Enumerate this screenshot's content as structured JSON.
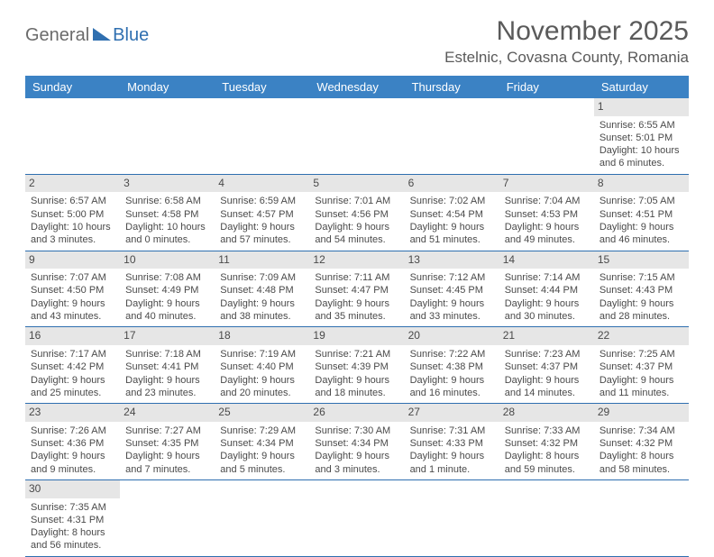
{
  "logo": {
    "general": "General",
    "blue": "Blue"
  },
  "header": {
    "month": "November 2025",
    "location": "Estelnic, Covasna County, Romania"
  },
  "colors": {
    "header_bg": "#3b82c4",
    "rule": "#2f6fb0",
    "daynum_bg": "#e6e6e6"
  },
  "day_headers": [
    "Sunday",
    "Monday",
    "Tuesday",
    "Wednesday",
    "Thursday",
    "Friday",
    "Saturday"
  ],
  "weeks": [
    [
      null,
      null,
      null,
      null,
      null,
      null,
      {
        "n": "1",
        "sr": "Sunrise: 6:55 AM",
        "ss": "Sunset: 5:01 PM",
        "dl": "Daylight: 10 hours and 6 minutes."
      }
    ],
    [
      {
        "n": "2",
        "sr": "Sunrise: 6:57 AM",
        "ss": "Sunset: 5:00 PM",
        "dl": "Daylight: 10 hours and 3 minutes."
      },
      {
        "n": "3",
        "sr": "Sunrise: 6:58 AM",
        "ss": "Sunset: 4:58 PM",
        "dl": "Daylight: 10 hours and 0 minutes."
      },
      {
        "n": "4",
        "sr": "Sunrise: 6:59 AM",
        "ss": "Sunset: 4:57 PM",
        "dl": "Daylight: 9 hours and 57 minutes."
      },
      {
        "n": "5",
        "sr": "Sunrise: 7:01 AM",
        "ss": "Sunset: 4:56 PM",
        "dl": "Daylight: 9 hours and 54 minutes."
      },
      {
        "n": "6",
        "sr": "Sunrise: 7:02 AM",
        "ss": "Sunset: 4:54 PM",
        "dl": "Daylight: 9 hours and 51 minutes."
      },
      {
        "n": "7",
        "sr": "Sunrise: 7:04 AM",
        "ss": "Sunset: 4:53 PM",
        "dl": "Daylight: 9 hours and 49 minutes."
      },
      {
        "n": "8",
        "sr": "Sunrise: 7:05 AM",
        "ss": "Sunset: 4:51 PM",
        "dl": "Daylight: 9 hours and 46 minutes."
      }
    ],
    [
      {
        "n": "9",
        "sr": "Sunrise: 7:07 AM",
        "ss": "Sunset: 4:50 PM",
        "dl": "Daylight: 9 hours and 43 minutes."
      },
      {
        "n": "10",
        "sr": "Sunrise: 7:08 AM",
        "ss": "Sunset: 4:49 PM",
        "dl": "Daylight: 9 hours and 40 minutes."
      },
      {
        "n": "11",
        "sr": "Sunrise: 7:09 AM",
        "ss": "Sunset: 4:48 PM",
        "dl": "Daylight: 9 hours and 38 minutes."
      },
      {
        "n": "12",
        "sr": "Sunrise: 7:11 AM",
        "ss": "Sunset: 4:47 PM",
        "dl": "Daylight: 9 hours and 35 minutes."
      },
      {
        "n": "13",
        "sr": "Sunrise: 7:12 AM",
        "ss": "Sunset: 4:45 PM",
        "dl": "Daylight: 9 hours and 33 minutes."
      },
      {
        "n": "14",
        "sr": "Sunrise: 7:14 AM",
        "ss": "Sunset: 4:44 PM",
        "dl": "Daylight: 9 hours and 30 minutes."
      },
      {
        "n": "15",
        "sr": "Sunrise: 7:15 AM",
        "ss": "Sunset: 4:43 PM",
        "dl": "Daylight: 9 hours and 28 minutes."
      }
    ],
    [
      {
        "n": "16",
        "sr": "Sunrise: 7:17 AM",
        "ss": "Sunset: 4:42 PM",
        "dl": "Daylight: 9 hours and 25 minutes."
      },
      {
        "n": "17",
        "sr": "Sunrise: 7:18 AM",
        "ss": "Sunset: 4:41 PM",
        "dl": "Daylight: 9 hours and 23 minutes."
      },
      {
        "n": "18",
        "sr": "Sunrise: 7:19 AM",
        "ss": "Sunset: 4:40 PM",
        "dl": "Daylight: 9 hours and 20 minutes."
      },
      {
        "n": "19",
        "sr": "Sunrise: 7:21 AM",
        "ss": "Sunset: 4:39 PM",
        "dl": "Daylight: 9 hours and 18 minutes."
      },
      {
        "n": "20",
        "sr": "Sunrise: 7:22 AM",
        "ss": "Sunset: 4:38 PM",
        "dl": "Daylight: 9 hours and 16 minutes."
      },
      {
        "n": "21",
        "sr": "Sunrise: 7:23 AM",
        "ss": "Sunset: 4:37 PM",
        "dl": "Daylight: 9 hours and 14 minutes."
      },
      {
        "n": "22",
        "sr": "Sunrise: 7:25 AM",
        "ss": "Sunset: 4:37 PM",
        "dl": "Daylight: 9 hours and 11 minutes."
      }
    ],
    [
      {
        "n": "23",
        "sr": "Sunrise: 7:26 AM",
        "ss": "Sunset: 4:36 PM",
        "dl": "Daylight: 9 hours and 9 minutes."
      },
      {
        "n": "24",
        "sr": "Sunrise: 7:27 AM",
        "ss": "Sunset: 4:35 PM",
        "dl": "Daylight: 9 hours and 7 minutes."
      },
      {
        "n": "25",
        "sr": "Sunrise: 7:29 AM",
        "ss": "Sunset: 4:34 PM",
        "dl": "Daylight: 9 hours and 5 minutes."
      },
      {
        "n": "26",
        "sr": "Sunrise: 7:30 AM",
        "ss": "Sunset: 4:34 PM",
        "dl": "Daylight: 9 hours and 3 minutes."
      },
      {
        "n": "27",
        "sr": "Sunrise: 7:31 AM",
        "ss": "Sunset: 4:33 PM",
        "dl": "Daylight: 9 hours and 1 minute."
      },
      {
        "n": "28",
        "sr": "Sunrise: 7:33 AM",
        "ss": "Sunset: 4:32 PM",
        "dl": "Daylight: 8 hours and 59 minutes."
      },
      {
        "n": "29",
        "sr": "Sunrise: 7:34 AM",
        "ss": "Sunset: 4:32 PM",
        "dl": "Daylight: 8 hours and 58 minutes."
      }
    ],
    [
      {
        "n": "30",
        "sr": "Sunrise: 7:35 AM",
        "ss": "Sunset: 4:31 PM",
        "dl": "Daylight: 8 hours and 56 minutes."
      },
      null,
      null,
      null,
      null,
      null,
      null
    ]
  ]
}
